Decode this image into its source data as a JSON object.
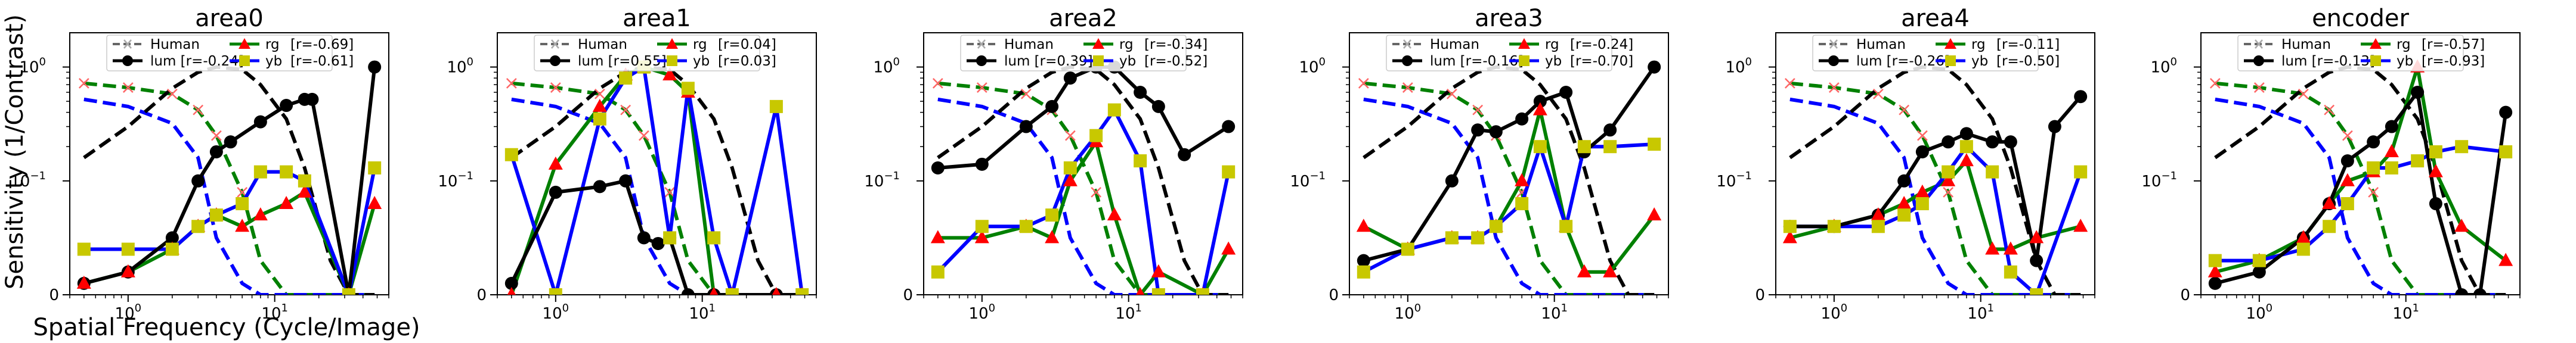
{
  "figure": {
    "ylabel": "Sensitivity (1/Contrast)",
    "xlabel": "Spatial Frequency (Cycle/Image)",
    "colors": {
      "human": "#666666",
      "lum": "#000000",
      "rg": "#008000",
      "yb": "#0000ff",
      "rg_marker": "#ff0000",
      "yb_marker": "#c8c800"
    }
  },
  "chart_data": [
    {
      "type": "line",
      "title": "area0",
      "xscale": "log",
      "yscale": "symlog",
      "xlim": [
        0.4,
        60
      ],
      "ylim": [
        0,
        2
      ],
      "x": [
        0.5,
        1,
        2,
        3,
        4,
        6,
        8,
        12,
        16,
        24,
        32,
        48
      ],
      "human": {
        "name": "Human",
        "rg": [
          0.72,
          0.66,
          0.58,
          0.42,
          0.25,
          0.09,
          0.03,
          0.0,
          0.0,
          0.0,
          0.0,
          0.0
        ],
        "yb": [
          0.52,
          0.45,
          0.32,
          0.16,
          0.05,
          0.01,
          0.0,
          0.0,
          0.0,
          0.0,
          0.0,
          0.0
        ],
        "lum": [
          0.16,
          0.3,
          0.65,
          0.9,
          1.0,
          0.95,
          0.7,
          0.35,
          0.13,
          0.03,
          0.0,
          0.0
        ]
      },
      "legend": [
        {
          "name": "Human"
        },
        {
          "name": "lum [r=-0.24]"
        },
        {
          "name": "rg",
          "r": "[r=-0.69]"
        },
        {
          "name": "yb",
          "r": "[r=-0.61]"
        }
      ],
      "lum": [
        [
          0.5,
          0.01
        ],
        [
          1,
          0.02
        ],
        [
          2,
          0.05
        ],
        [
          3,
          0.1
        ],
        [
          4,
          0.18
        ],
        [
          5,
          0.22
        ],
        [
          8,
          0.33
        ],
        [
          12,
          0.46
        ],
        [
          16,
          0.52
        ],
        [
          18,
          0.52
        ],
        [
          32,
          0.0
        ],
        [
          48,
          1.0
        ]
      ],
      "rg": [
        [
          0.5,
          0.01
        ],
        [
          1,
          0.02
        ],
        [
          2,
          0.04
        ],
        [
          3,
          0.06
        ],
        [
          4,
          0.07
        ],
        [
          6,
          0.06
        ],
        [
          8,
          0.07
        ],
        [
          12,
          0.08
        ],
        [
          16,
          0.09
        ],
        [
          32,
          0.0
        ],
        [
          48,
          0.08
        ]
      ],
      "yb": [
        [
          0.5,
          0.04
        ],
        [
          1,
          0.04
        ],
        [
          2,
          0.04
        ],
        [
          3,
          0.06
        ],
        [
          4,
          0.07
        ],
        [
          6,
          0.08
        ],
        [
          8,
          0.12
        ],
        [
          12,
          0.12
        ],
        [
          16,
          0.1
        ],
        [
          32,
          0.0
        ],
        [
          48,
          0.13
        ]
      ]
    },
    {
      "type": "line",
      "title": "area1",
      "xscale": "log",
      "yscale": "symlog",
      "xlim": [
        0.4,
        60
      ],
      "ylim": [
        0,
        2
      ],
      "x": [
        0.5,
        1,
        2,
        3,
        4,
        6,
        8,
        12,
        16,
        24,
        32,
        48
      ],
      "human": {
        "name": "Human",
        "rg": [
          0.72,
          0.66,
          0.58,
          0.42,
          0.25,
          0.09,
          0.03,
          0.0,
          0.0,
          0.0,
          0.0,
          0.0
        ],
        "yb": [
          0.52,
          0.45,
          0.32,
          0.16,
          0.05,
          0.01,
          0.0,
          0.0,
          0.0,
          0.0,
          0.0,
          0.0
        ],
        "lum": [
          0.16,
          0.3,
          0.65,
          0.9,
          1.0,
          0.95,
          0.7,
          0.35,
          0.13,
          0.03,
          0.0,
          0.0
        ]
      },
      "legend": [
        {
          "name": "Human"
        },
        {
          "name": "lum [r=0.55]"
        },
        {
          "name": "rg",
          "r": "[r=0.04]"
        },
        {
          "name": "yb",
          "r": "[r=0.03]"
        }
      ],
      "lum": [
        [
          0.5,
          0.01
        ],
        [
          1,
          0.09
        ],
        [
          2,
          0.095
        ],
        [
          3,
          0.1
        ],
        [
          4,
          0.05
        ],
        [
          5,
          0.045
        ],
        [
          6,
          0.05
        ],
        [
          8,
          0.0
        ],
        [
          12,
          0.0
        ],
        [
          16,
          0.0
        ],
        [
          32,
          0.0
        ],
        [
          48,
          0.0
        ]
      ],
      "rg": [
        [
          0.5,
          0.0
        ],
        [
          1,
          0.14
        ],
        [
          2,
          0.45
        ],
        [
          3,
          0.85
        ],
        [
          4,
          1.0
        ],
        [
          6,
          0.85
        ],
        [
          8,
          0.6
        ],
        [
          12,
          0.0
        ],
        [
          16,
          0.0
        ],
        [
          32,
          0.0
        ],
        [
          48,
          0.0
        ]
      ],
      "yb": [
        [
          0.5,
          0.17
        ],
        [
          1,
          0.0
        ],
        [
          2,
          0.35
        ],
        [
          3,
          0.8
        ],
        [
          4,
          1.0
        ],
        [
          6,
          0.05
        ],
        [
          8,
          0.65
        ],
        [
          12,
          0.05
        ],
        [
          16,
          0.0
        ],
        [
          32,
          0.45
        ],
        [
          48,
          0.0
        ]
      ]
    },
    {
      "type": "line",
      "title": "area2",
      "xscale": "log",
      "yscale": "symlog",
      "xlim": [
        0.4,
        60
      ],
      "ylim": [
        0,
        2
      ],
      "x": [
        0.5,
        1,
        2,
        3,
        4,
        6,
        8,
        12,
        16,
        24,
        32,
        48
      ],
      "human": {
        "name": "Human",
        "rg": [
          0.72,
          0.66,
          0.58,
          0.42,
          0.25,
          0.09,
          0.03,
          0.0,
          0.0,
          0.0,
          0.0,
          0.0
        ],
        "yb": [
          0.52,
          0.45,
          0.32,
          0.16,
          0.05,
          0.01,
          0.0,
          0.0,
          0.0,
          0.0,
          0.0,
          0.0
        ],
        "lum": [
          0.16,
          0.3,
          0.65,
          0.9,
          1.0,
          0.95,
          0.7,
          0.35,
          0.13,
          0.03,
          0.0,
          0.0
        ]
      },
      "legend": [
        {
          "name": "Human"
        },
        {
          "name": "lum [r=0.39]"
        },
        {
          "name": "rg",
          "r": "[r=-0.34]"
        },
        {
          "name": "yb",
          "r": "[r=-0.52]"
        }
      ],
      "lum": [
        [
          0.5,
          0.13
        ],
        [
          1,
          0.14
        ],
        [
          2,
          0.3
        ],
        [
          3,
          0.45
        ],
        [
          4,
          0.8
        ],
        [
          6,
          1.0
        ],
        [
          8,
          1.0
        ],
        [
          12,
          0.6
        ],
        [
          16,
          0.45
        ],
        [
          24,
          0.17
        ],
        [
          48,
          0.3
        ]
      ],
      "rg": [
        [
          0.5,
          0.05
        ],
        [
          1,
          0.05
        ],
        [
          2,
          0.06
        ],
        [
          3,
          0.05
        ],
        [
          4,
          0.1
        ],
        [
          6,
          0.22
        ],
        [
          8,
          0.07
        ],
        [
          12,
          0.0
        ],
        [
          16,
          0.02
        ],
        [
          32,
          0.0
        ],
        [
          48,
          0.04
        ]
      ],
      "yb": [
        [
          0.5,
          0.02
        ],
        [
          1,
          0.06
        ],
        [
          2,
          0.06
        ],
        [
          3,
          0.07
        ],
        [
          4,
          0.13
        ],
        [
          6,
          0.25
        ],
        [
          8,
          0.42
        ],
        [
          12,
          0.15
        ],
        [
          16,
          0.0
        ],
        [
          32,
          0.0
        ],
        [
          48,
          0.12
        ]
      ]
    },
    {
      "type": "line",
      "title": "area3",
      "xscale": "log",
      "yscale": "symlog",
      "xlim": [
        0.4,
        60
      ],
      "ylim": [
        0,
        2
      ],
      "x": [
        0.5,
        1,
        2,
        3,
        4,
        6,
        8,
        12,
        16,
        24,
        32,
        48
      ],
      "human": {
        "name": "Human",
        "rg": [
          0.72,
          0.66,
          0.58,
          0.42,
          0.25,
          0.09,
          0.03,
          0.0,
          0.0,
          0.0,
          0.0,
          0.0
        ],
        "yb": [
          0.52,
          0.45,
          0.32,
          0.16,
          0.05,
          0.01,
          0.0,
          0.0,
          0.0,
          0.0,
          0.0,
          0.0
        ],
        "lum": [
          0.16,
          0.3,
          0.65,
          0.9,
          1.0,
          0.95,
          0.7,
          0.35,
          0.13,
          0.03,
          0.0,
          0.0
        ]
      },
      "legend": [
        {
          "name": "Human"
        },
        {
          "name": "lum [r=-0.16]"
        },
        {
          "name": "rg",
          "r": "[r=-0.24]"
        },
        {
          "name": "yb",
          "r": "[r=-0.70]"
        }
      ],
      "lum": [
        [
          0.5,
          0.03
        ],
        [
          1,
          0.04
        ],
        [
          2,
          0.1
        ],
        [
          3,
          0.28
        ],
        [
          4,
          0.27
        ],
        [
          6,
          0.35
        ],
        [
          8,
          0.5
        ],
        [
          12,
          0.6
        ],
        [
          16,
          0.18
        ],
        [
          24,
          0.28
        ],
        [
          48,
          1.0
        ]
      ],
      "rg": [
        [
          0.5,
          0.06
        ],
        [
          1,
          0.04
        ],
        [
          2,
          0.05
        ],
        [
          3,
          0.05
        ],
        [
          4,
          0.06
        ],
        [
          6,
          0.1
        ],
        [
          8,
          0.42
        ],
        [
          12,
          0.06
        ],
        [
          16,
          0.02
        ],
        [
          24,
          0.02
        ],
        [
          48,
          0.07
        ]
      ],
      "yb": [
        [
          0.5,
          0.02
        ],
        [
          1,
          0.04
        ],
        [
          2,
          0.05
        ],
        [
          3,
          0.05
        ],
        [
          4,
          0.06
        ],
        [
          6,
          0.08
        ],
        [
          8,
          0.2
        ],
        [
          12,
          0.06
        ],
        [
          16,
          0.2
        ],
        [
          24,
          0.2
        ],
        [
          48,
          0.21
        ]
      ]
    },
    {
      "type": "line",
      "title": "area4",
      "xscale": "log",
      "yscale": "symlog",
      "xlim": [
        0.4,
        60
      ],
      "ylim": [
        0,
        2
      ],
      "x": [
        0.5,
        1,
        2,
        3,
        4,
        6,
        8,
        12,
        16,
        24,
        32,
        48
      ],
      "human": {
        "name": "Human",
        "rg": [
          0.72,
          0.66,
          0.58,
          0.42,
          0.25,
          0.09,
          0.03,
          0.0,
          0.0,
          0.0,
          0.0,
          0.0
        ],
        "yb": [
          0.52,
          0.45,
          0.32,
          0.16,
          0.05,
          0.01,
          0.0,
          0.0,
          0.0,
          0.0,
          0.0,
          0.0
        ],
        "lum": [
          0.16,
          0.3,
          0.65,
          0.9,
          1.0,
          0.95,
          0.7,
          0.35,
          0.13,
          0.03,
          0.0,
          0.0
        ]
      },
      "legend": [
        {
          "name": "Human"
        },
        {
          "name": "lum [r=-0.26]"
        },
        {
          "name": "rg",
          "r": "[r=-0.11]"
        },
        {
          "name": "yb",
          "r": "[r=-0.50]"
        }
      ],
      "lum": [
        [
          0.5,
          0.06
        ],
        [
          1,
          0.06
        ],
        [
          2,
          0.07
        ],
        [
          3,
          0.1
        ],
        [
          4,
          0.18
        ],
        [
          6,
          0.22
        ],
        [
          8,
          0.26
        ],
        [
          12,
          0.22
        ],
        [
          16,
          0.22
        ],
        [
          24,
          0.03
        ],
        [
          32,
          0.3
        ],
        [
          48,
          0.55
        ]
      ],
      "rg": [
        [
          0.5,
          0.05
        ],
        [
          1,
          0.06
        ],
        [
          2,
          0.07
        ],
        [
          3,
          0.08
        ],
        [
          4,
          0.09
        ],
        [
          6,
          0.1
        ],
        [
          8,
          0.15
        ],
        [
          12,
          0.04
        ],
        [
          16,
          0.04
        ],
        [
          24,
          0.05
        ],
        [
          48,
          0.06
        ]
      ],
      "yb": [
        [
          0.5,
          0.06
        ],
        [
          1,
          0.06
        ],
        [
          2,
          0.06
        ],
        [
          3,
          0.07
        ],
        [
          4,
          0.08
        ],
        [
          6,
          0.12
        ],
        [
          8,
          0.2
        ],
        [
          12,
          0.12
        ],
        [
          16,
          0.02
        ],
        [
          24,
          0.0
        ],
        [
          48,
          0.12
        ]
      ]
    },
    {
      "type": "line",
      "title": "encoder",
      "xscale": "log",
      "yscale": "symlog",
      "xlim": [
        0.4,
        60
      ],
      "ylim": [
        0,
        2
      ],
      "x": [
        0.5,
        1,
        2,
        3,
        4,
        6,
        8,
        12,
        16,
        24,
        32,
        48
      ],
      "human": {
        "name": "Human",
        "rg": [
          0.72,
          0.66,
          0.58,
          0.42,
          0.25,
          0.09,
          0.03,
          0.0,
          0.0,
          0.0,
          0.0,
          0.0
        ],
        "yb": [
          0.52,
          0.45,
          0.32,
          0.16,
          0.05,
          0.01,
          0.0,
          0.0,
          0.0,
          0.0,
          0.0,
          0.0
        ],
        "lum": [
          0.16,
          0.3,
          0.65,
          0.9,
          1.0,
          0.95,
          0.7,
          0.35,
          0.13,
          0.03,
          0.0,
          0.0
        ]
      },
      "legend": [
        {
          "name": "Human"
        },
        {
          "name": "lum [r=-0.13]"
        },
        {
          "name": "rg",
          "r": "[r=-0.57]"
        },
        {
          "name": "yb",
          "r": "[r=-0.93]"
        }
      ],
      "lum": [
        [
          0.5,
          0.01
        ],
        [
          1,
          0.02
        ],
        [
          2,
          0.05
        ],
        [
          3,
          0.08
        ],
        [
          4,
          0.15
        ],
        [
          6,
          0.22
        ],
        [
          8,
          0.3
        ],
        [
          12,
          0.6
        ],
        [
          16,
          0.08
        ],
        [
          24,
          0.0
        ],
        [
          32,
          0.0
        ],
        [
          48,
          0.4
        ]
      ],
      "rg": [
        [
          0.5,
          0.02
        ],
        [
          1,
          0.03
        ],
        [
          2,
          0.05
        ],
        [
          3,
          0.08
        ],
        [
          4,
          0.1
        ],
        [
          6,
          0.12
        ],
        [
          8,
          0.18
        ],
        [
          12,
          1.0
        ],
        [
          16,
          0.12
        ],
        [
          24,
          0.06
        ],
        [
          48,
          0.03
        ]
      ],
      "yb": [
        [
          0.5,
          0.03
        ],
        [
          1,
          0.03
        ],
        [
          2,
          0.04
        ],
        [
          3,
          0.06
        ],
        [
          4,
          0.08
        ],
        [
          6,
          0.13
        ],
        [
          8,
          0.13
        ],
        [
          12,
          0.15
        ],
        [
          16,
          0.18
        ],
        [
          24,
          0.2
        ],
        [
          48,
          0.18
        ]
      ]
    }
  ]
}
